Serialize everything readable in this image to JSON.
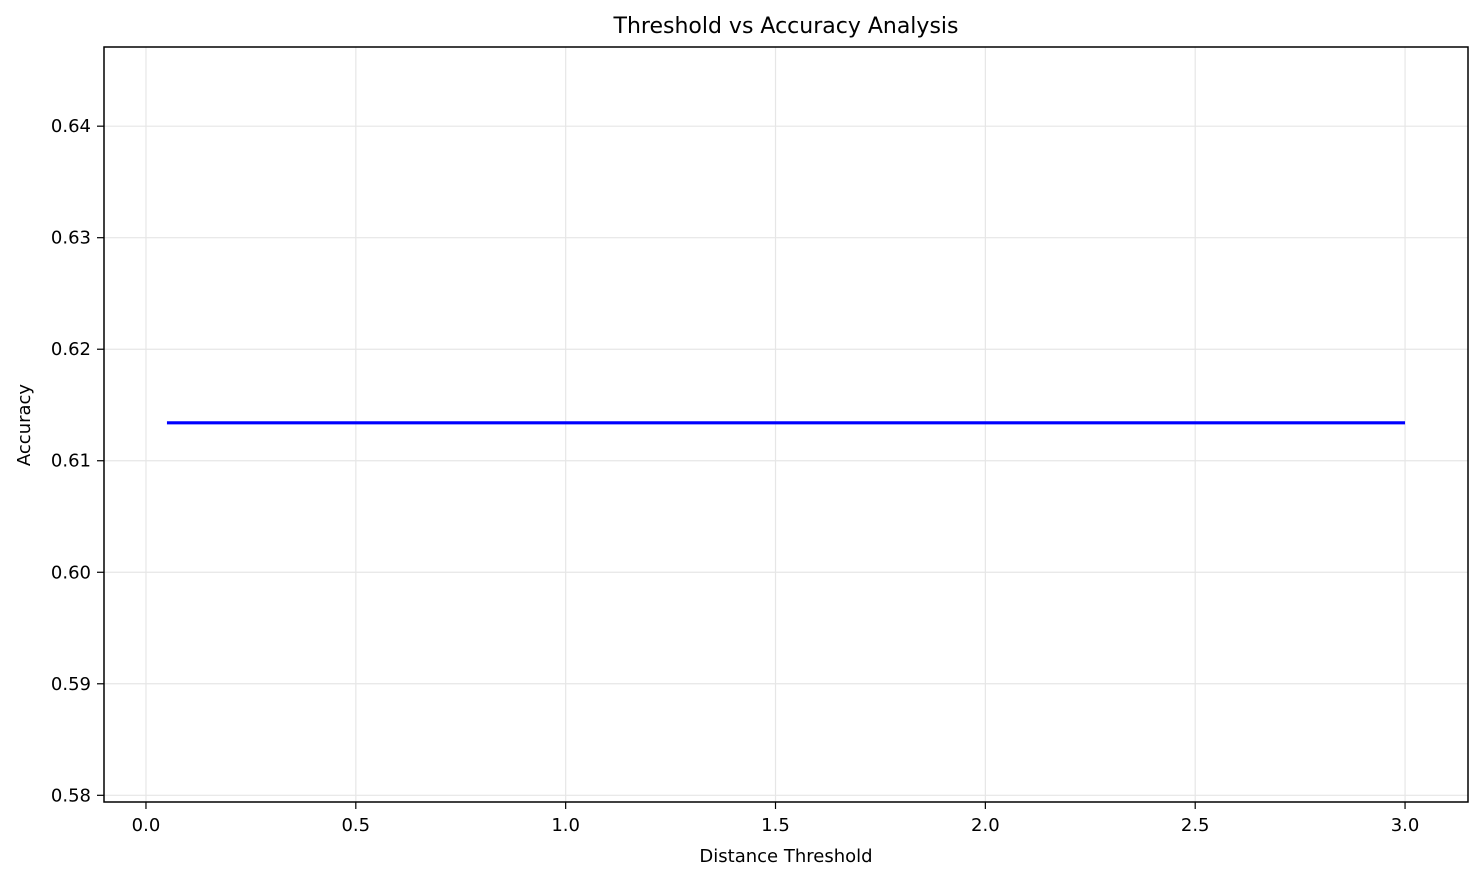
{
  "chart_data": {
    "type": "line",
    "title": "Threshold vs Accuracy Analysis",
    "xlabel": "Distance Threshold",
    "ylabel": "Accuracy",
    "xlim": [
      -0.1,
      3.15
    ],
    "ylim": [
      0.5794,
      0.6471
    ],
    "x_ticks": [
      0.0,
      0.5,
      1.0,
      1.5,
      2.0,
      2.5,
      3.0
    ],
    "x_tick_labels": [
      "0.0",
      "0.5",
      "1.0",
      "1.5",
      "2.0",
      "2.5",
      "3.0"
    ],
    "y_ticks": [
      0.58,
      0.59,
      0.6,
      0.61,
      0.62,
      0.63,
      0.64
    ],
    "y_tick_labels": [
      "0.58",
      "0.59",
      "0.60",
      "0.61",
      "0.62",
      "0.63",
      "0.64"
    ],
    "grid": true,
    "series": [
      {
        "color": "#0000ff",
        "x": [
          0.05,
          3.0
        ],
        "y": [
          0.6134,
          0.6134
        ]
      }
    ]
  },
  "colors": {
    "grid": "#e6e6e6",
    "axes": "#000000"
  }
}
